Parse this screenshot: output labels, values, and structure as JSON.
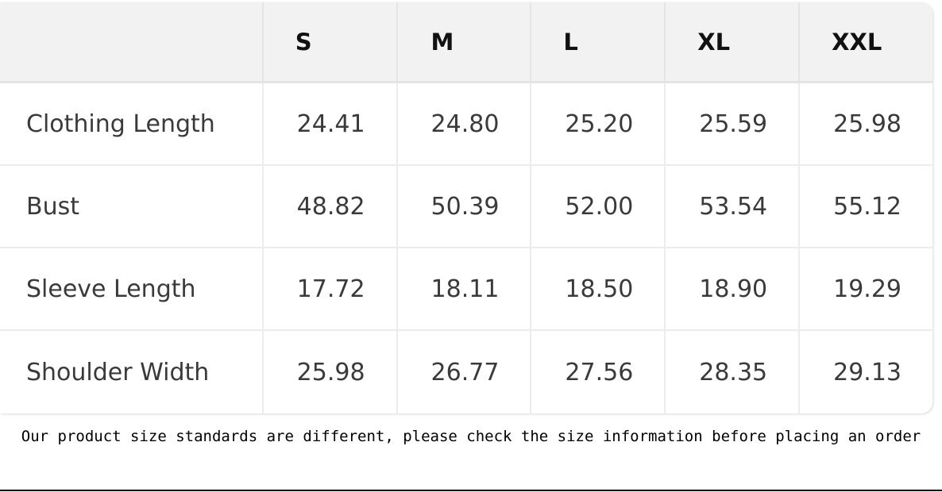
{
  "table": {
    "headers": [
      "",
      "S",
      "M",
      "L",
      "XL",
      "XXL"
    ],
    "rows": [
      {
        "label": "Clothing Length",
        "values": [
          "24.41",
          "24.80",
          "25.20",
          "25.59",
          "25.98"
        ]
      },
      {
        "label": "Bust",
        "values": [
          "48.82",
          "50.39",
          "52.00",
          "53.54",
          "55.12"
        ]
      },
      {
        "label": "Sleeve Length",
        "values": [
          "17.72",
          "18.11",
          "18.50",
          "18.90",
          "19.29"
        ]
      },
      {
        "label": "Shoulder Width",
        "values": [
          "25.98",
          "26.77",
          "27.56",
          "28.35",
          "29.13"
        ]
      }
    ]
  },
  "caption": "Our product size standards are different, please check the size information before placing an order"
}
